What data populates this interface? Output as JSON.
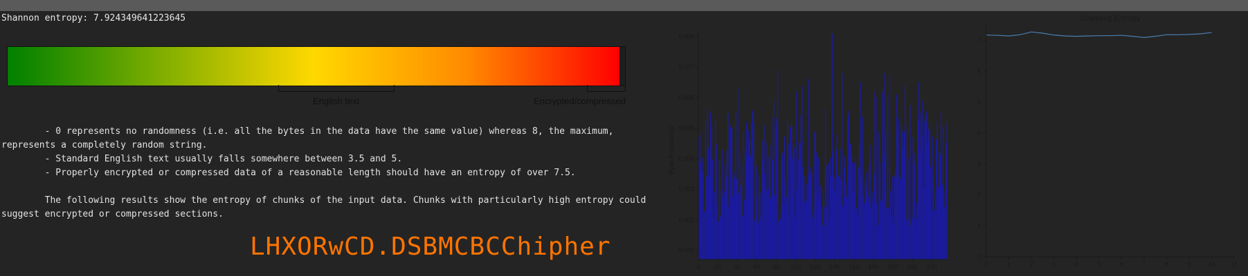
{
  "entropy": {
    "label": "Shannon entropy: 7.924349641223645"
  },
  "scale": {
    "english_label": "English text",
    "encrypted_label": "Encrypted/compressed"
  },
  "description": {
    "line1": "\t- 0 represents no randomness (i.e. all the bytes in the data have the same value) whereas 8, the maximum, represents a completely random string.",
    "line2": "\t- Standard English text usually falls somewhere between 3.5 and 5.",
    "line3": "\t- Properly encrypted or compressed data of a reasonable length should have an entropy of over 7.5.",
    "line4": "\tThe following results show the entropy of chunks of the input data. Chunks with particularly high entropy could suggest encrypted or compressed sections."
  },
  "cipher": {
    "title": "LHXORwCD.DSBMCBCChipher"
  },
  "colors": {
    "bar": "#1a1aa8",
    "line": "#4a7fb0",
    "accent": "#ff7400"
  },
  "chart_data": [
    {
      "type": "bar",
      "title": "",
      "xlabel": "",
      "ylabel": "Byte Frequency",
      "xlim": [
        0,
        256
      ],
      "ylim": [
        0.0007,
        0.0082
      ],
      "xticks": [
        0,
        20,
        40,
        60,
        80,
        100,
        120,
        140,
        160,
        180,
        200,
        220,
        240
      ],
      "yticks": [
        "0.001",
        "0.002",
        "0.003",
        "0.004",
        "0.005",
        "0.006",
        "0.007",
        "0.008"
      ],
      "seed": 91,
      "highlights": [
        [
          137,
          0.0081
        ],
        [
          40,
          0.0063
        ],
        [
          81,
          0.0069
        ],
        [
          106,
          0.0064
        ],
        [
          113,
          0.0066
        ],
        [
          147,
          0.0068
        ],
        [
          166,
          0.0065
        ],
        [
          180,
          0.0062
        ],
        [
          191,
          0.0068
        ],
        [
          196,
          0.0067
        ],
        [
          212,
          0.0064
        ],
        [
          226,
          0.0065
        ],
        [
          9,
          0.0056
        ],
        [
          100,
          0.0062
        ],
        [
          203,
          0.0061
        ],
        [
          249,
          0.0055
        ]
      ]
    },
    {
      "type": "line",
      "title": "Scanning Entropy",
      "xlabel": "",
      "ylabel": "",
      "xlim": [
        0,
        11
      ],
      "ylim": [
        0,
        7.5
      ],
      "xticks": [
        0,
        1,
        2,
        3,
        4,
        5,
        6,
        7,
        8,
        9,
        10,
        11
      ],
      "yticks": [
        0,
        1,
        2,
        3,
        4,
        5,
        6,
        7
      ],
      "x": [
        0,
        0.5,
        1,
        1.5,
        2,
        2.5,
        3,
        3.5,
        4,
        4.5,
        5,
        5.5,
        6,
        6.5,
        7,
        7.5,
        8,
        8.5,
        9,
        9.5,
        10
      ],
      "y": [
        7.17,
        7.16,
        7.14,
        7.18,
        7.27,
        7.23,
        7.17,
        7.14,
        7.13,
        7.14,
        7.15,
        7.15,
        7.16,
        7.13,
        7.09,
        7.13,
        7.18,
        7.18,
        7.19,
        7.21,
        7.25
      ]
    }
  ]
}
